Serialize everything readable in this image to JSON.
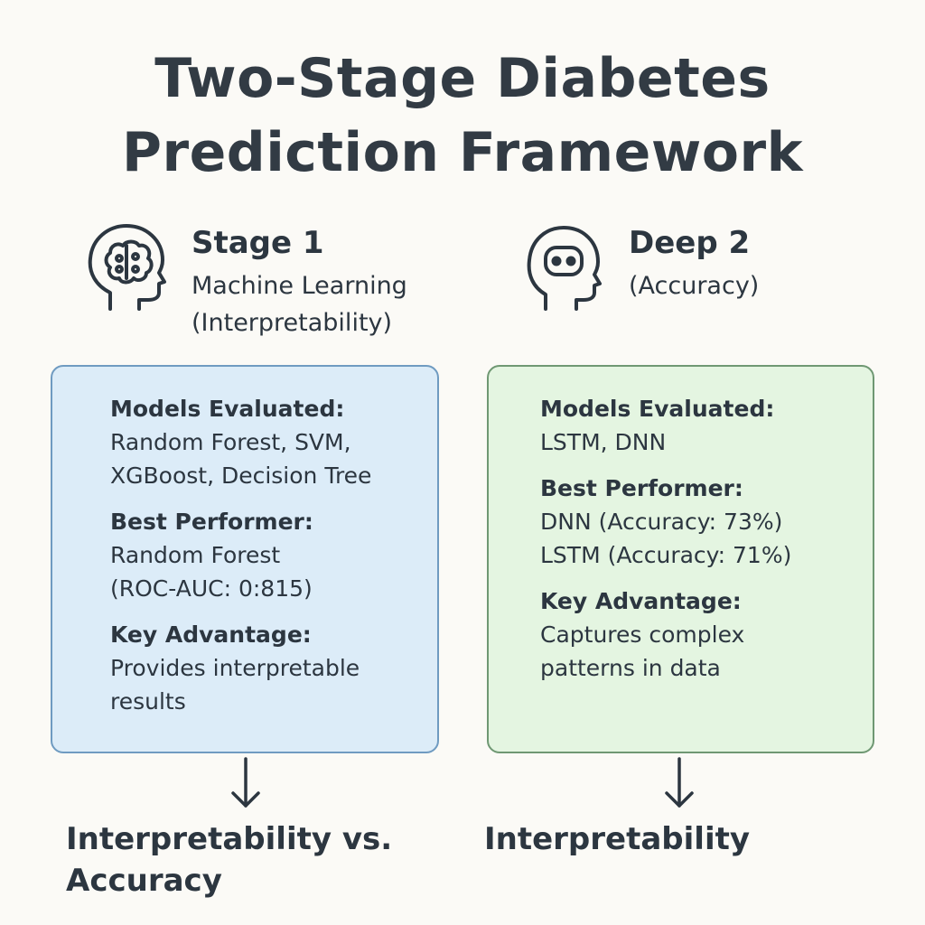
{
  "title_lines": [
    "Two-Stage Diabetes",
    "Prediction Framework"
  ],
  "stages": [
    {
      "title": "Stage 1",
      "subtitle_lines": [
        "Machine Learning",
        "(Interpretability)"
      ],
      "icon": "brain-head-icon",
      "sections": [
        {
          "label": "Models Evaluated:",
          "lines": [
            "Random Forest, SVM,",
            "XGBoost, Decision Tree"
          ]
        },
        {
          "label": "Best Performer:",
          "lines": [
            "Random Forest",
            "(ROC-AUC: 0:815)"
          ]
        },
        {
          "label": "Key Advantage:",
          "lines": [
            "Provides interpretable",
            "results"
          ]
        }
      ],
      "outcome_lines": [
        "Interpretability vs.",
        "Accuracy"
      ]
    },
    {
      "title": "Deep 2",
      "subtitle_lines": [
        "(Accuracy)"
      ],
      "icon": "robot-head-icon",
      "sections": [
        {
          "label": "Models Evaluated:",
          "lines": [
            "LSTM, DNN"
          ]
        },
        {
          "label": "Best Performer:",
          "lines": [
            "DNN (Accuracy: 73%)",
            "LSTM (Accuracy: 71%)"
          ]
        },
        {
          "label": "Key Advantage:",
          "lines": [
            "Captures complex",
            "patterns in data"
          ]
        }
      ],
      "outcome_lines": [
        "Interpretability"
      ]
    }
  ],
  "colors": {
    "background": "#fbfaf6",
    "text": "#2c3640",
    "stage1_fill": "#dcecf8",
    "stage1_border": "#6f9bc1",
    "stage2_fill": "#e4f5e1",
    "stage2_border": "#6f9873"
  }
}
